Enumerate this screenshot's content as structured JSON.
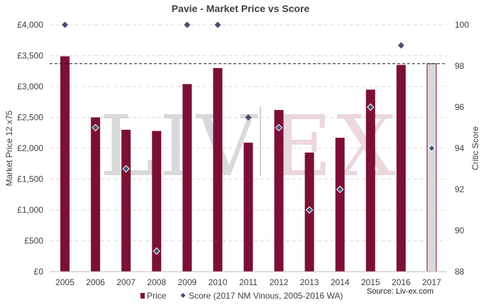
{
  "chart_data": {
    "type": "bar",
    "title": "Pavie - Market Price vs Score",
    "ylabel": "Market Price 12 x75",
    "y2label": "Critic Score",
    "categories": [
      "2005",
      "2006",
      "2007",
      "2008",
      "2009",
      "2010",
      "2011",
      "2012",
      "2013",
      "2014",
      "2015",
      "2016",
      "2017"
    ],
    "series": [
      {
        "name": "Price",
        "type": "bar",
        "axis": "left",
        "color": "#7b0f38",
        "values": [
          3490,
          2500,
          2300,
          2280,
          3040,
          3300,
          2090,
          2620,
          1930,
          2170,
          2950,
          3350,
          3370
        ]
      },
      {
        "name": "Score (2017 NM Vinous, 2005-2016 WA)",
        "type": "scatter",
        "axis": "right",
        "color": "#4a4e75",
        "values": [
          100,
          95,
          93,
          89,
          100,
          100,
          95.5,
          95,
          91,
          92,
          96,
          99,
          94
        ]
      }
    ],
    "highlight_last_bar_color": "#d9d9d9",
    "reference_line_value": 3370,
    "ylim": [
      0,
      4000
    ],
    "yticks": [
      "£0",
      "£500",
      "£1,000",
      "£1,500",
      "£2,000",
      "£2,500",
      "£3,000",
      "£3,500",
      "£4,000"
    ],
    "ytick_values": [
      0,
      500,
      1000,
      1500,
      2000,
      2500,
      3000,
      3500,
      4000
    ],
    "y2lim": [
      88,
      100
    ],
    "y2ticks": [
      "88",
      "90",
      "92",
      "94",
      "96",
      "98",
      "100"
    ],
    "y2tick_values": [
      88,
      90,
      92,
      94,
      96,
      98,
      100
    ],
    "grid": true,
    "legend_position": "bottom",
    "source": "Source: Liv-ex.com",
    "watermark": {
      "left": "LIV",
      "right": "EX"
    }
  }
}
